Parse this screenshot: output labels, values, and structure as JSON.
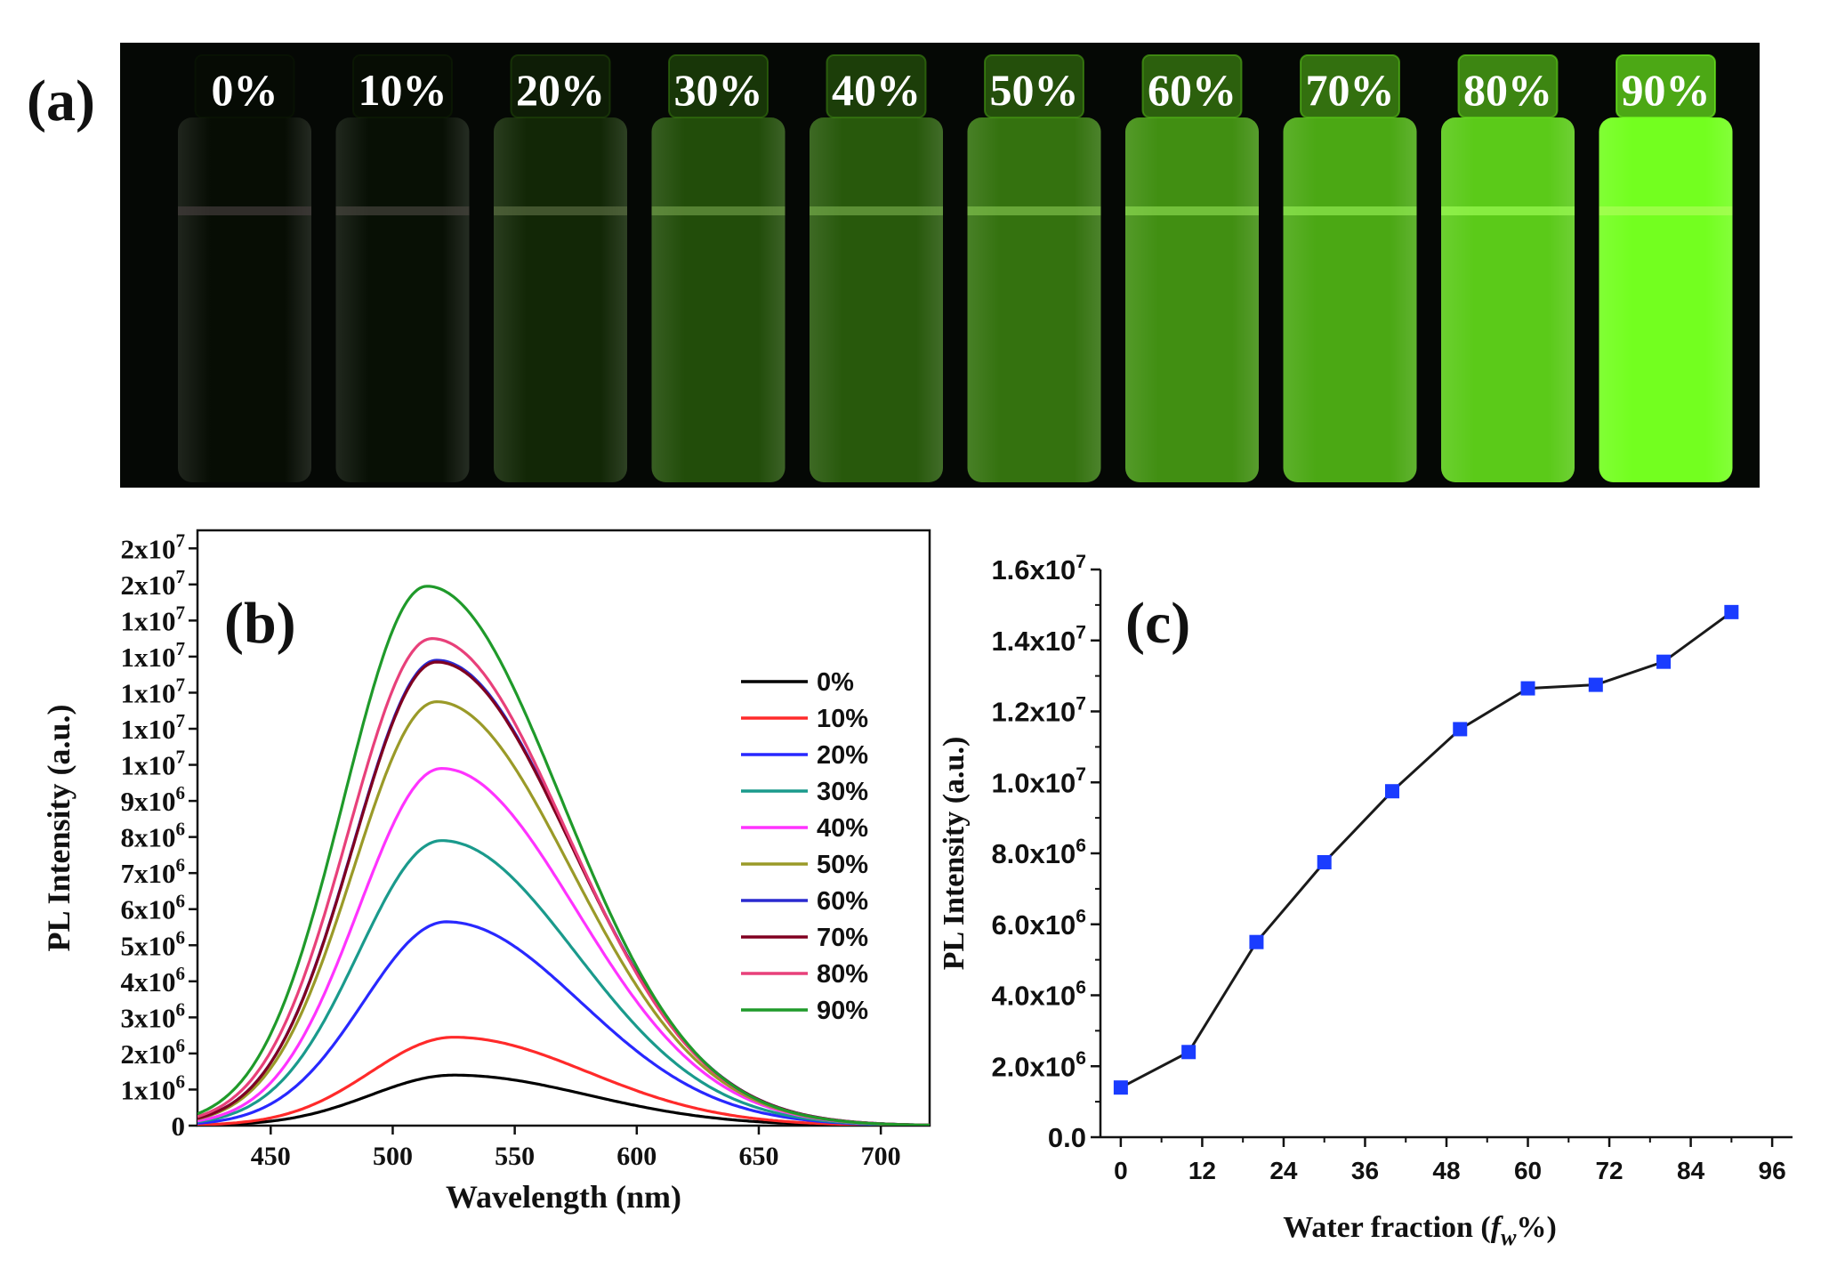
{
  "panel_a": {
    "label": "(a)",
    "vials": [
      {
        "label": "0%",
        "fraction": 0.02
      },
      {
        "label": "10%",
        "fraction": 0.05
      },
      {
        "label": "20%",
        "fraction": 0.22
      },
      {
        "label": "30%",
        "fraction": 0.42
      },
      {
        "label": "40%",
        "fraction": 0.48
      },
      {
        "label": "50%",
        "fraction": 0.58
      },
      {
        "label": "60%",
        "fraction": 0.68
      },
      {
        "label": "70%",
        "fraction": 0.76
      },
      {
        "label": "80%",
        "fraction": 0.86
      },
      {
        "label": "90%",
        "fraction": 1.0
      }
    ]
  },
  "chart_data": [
    {
      "type": "line",
      "panel_label": "(b)",
      "xlabel": "Wavelength (nm)",
      "ylabel": "PL Intensity (a.u.)",
      "xlim": [
        420,
        720
      ],
      "ylim": [
        0,
        16500000
      ],
      "xticks": [
        450,
        500,
        550,
        600,
        650,
        700
      ],
      "yticks": [
        {
          "value": 0,
          "label": "0"
        },
        {
          "value": 1000000,
          "label": "1x10^6"
        },
        {
          "value": 2000000,
          "label": "2x10^6"
        },
        {
          "value": 3000000,
          "label": "3x10^6"
        },
        {
          "value": 4000000,
          "label": "4x10^6"
        },
        {
          "value": 5000000,
          "label": "5x10^6"
        },
        {
          "value": 6000000,
          "label": "6x10^6"
        },
        {
          "value": 7000000,
          "label": "7x10^6"
        },
        {
          "value": 8000000,
          "label": "8x10^6"
        },
        {
          "value": 9000000,
          "label": "9x10^6"
        },
        {
          "value": 10000000,
          "label": "1x10^7"
        },
        {
          "value": 11000000,
          "label": "1x10^7"
        },
        {
          "value": 12000000,
          "label": "1x10^7"
        },
        {
          "value": 13000000,
          "label": "1x10^7"
        },
        {
          "value": 14000000,
          "label": "1x10^7"
        },
        {
          "value": 15000000,
          "label": "2x10^7"
        },
        {
          "value": 16000000,
          "label": "2x10^7"
        }
      ],
      "legend_position": "right",
      "series": [
        {
          "name": "0%",
          "color": "#000000",
          "peak_x": 525,
          "peak": 1400000
        },
        {
          "name": "10%",
          "color": "#ff2a2a",
          "peak_x": 525,
          "peak": 2450000
        },
        {
          "name": "20%",
          "color": "#2828ff",
          "peak_x": 522,
          "peak": 5650000
        },
        {
          "name": "30%",
          "color": "#1a9a8c",
          "peak_x": 520,
          "peak": 7900000
        },
        {
          "name": "40%",
          "color": "#ff33ff",
          "peak_x": 520,
          "peak": 9900000
        },
        {
          "name": "50%",
          "color": "#9a9a28",
          "peak_x": 518,
          "peak": 11750000
        },
        {
          "name": "60%",
          "color": "#2a2ad0",
          "peak_x": 518,
          "peak": 12900000
        },
        {
          "name": "70%",
          "color": "#800020",
          "peak_x": 518,
          "peak": 12850000
        },
        {
          "name": "80%",
          "color": "#e8407a",
          "peak_x": 516,
          "peak": 13500000
        },
        {
          "name": "90%",
          "color": "#1f9a2a",
          "peak_x": 514,
          "peak": 14950000
        }
      ]
    },
    {
      "type": "line",
      "panel_label": "(c)",
      "xlabel": "Water fraction (",
      "xlabel_var": "f",
      "xlabel_sub": "w",
      "xlabel_tail": "%)",
      "ylabel": "PL Intensity (a.u.)",
      "xlim": [
        -3,
        99
      ],
      "ylim": [
        0,
        16000000
      ],
      "xticks": [
        0,
        12,
        24,
        36,
        48,
        60,
        72,
        84,
        96
      ],
      "yticks": [
        {
          "value": 0,
          "label": "0.0"
        },
        {
          "value": 2000000,
          "label": "2.0x10^6"
        },
        {
          "value": 4000000,
          "label": "4.0x10^6"
        },
        {
          "value": 6000000,
          "label": "6.0x10^6"
        },
        {
          "value": 8000000,
          "label": "8.0x10^6"
        },
        {
          "value": 10000000,
          "label": "1.0x10^7"
        },
        {
          "value": 12000000,
          "label": "1.2x10^7"
        },
        {
          "value": 14000000,
          "label": "1.4x10^7"
        },
        {
          "value": 16000000,
          "label": "1.6x10^7"
        }
      ],
      "line_color": "#1a1a1a",
      "marker_color": "#1a3cff",
      "x": [
        0,
        10,
        20,
        30,
        40,
        50,
        60,
        70,
        80,
        90
      ],
      "y": [
        1400000,
        2400000,
        5500000,
        7750000,
        9750000,
        11500000,
        12650000,
        12750000,
        13400000,
        14800000
      ]
    }
  ]
}
